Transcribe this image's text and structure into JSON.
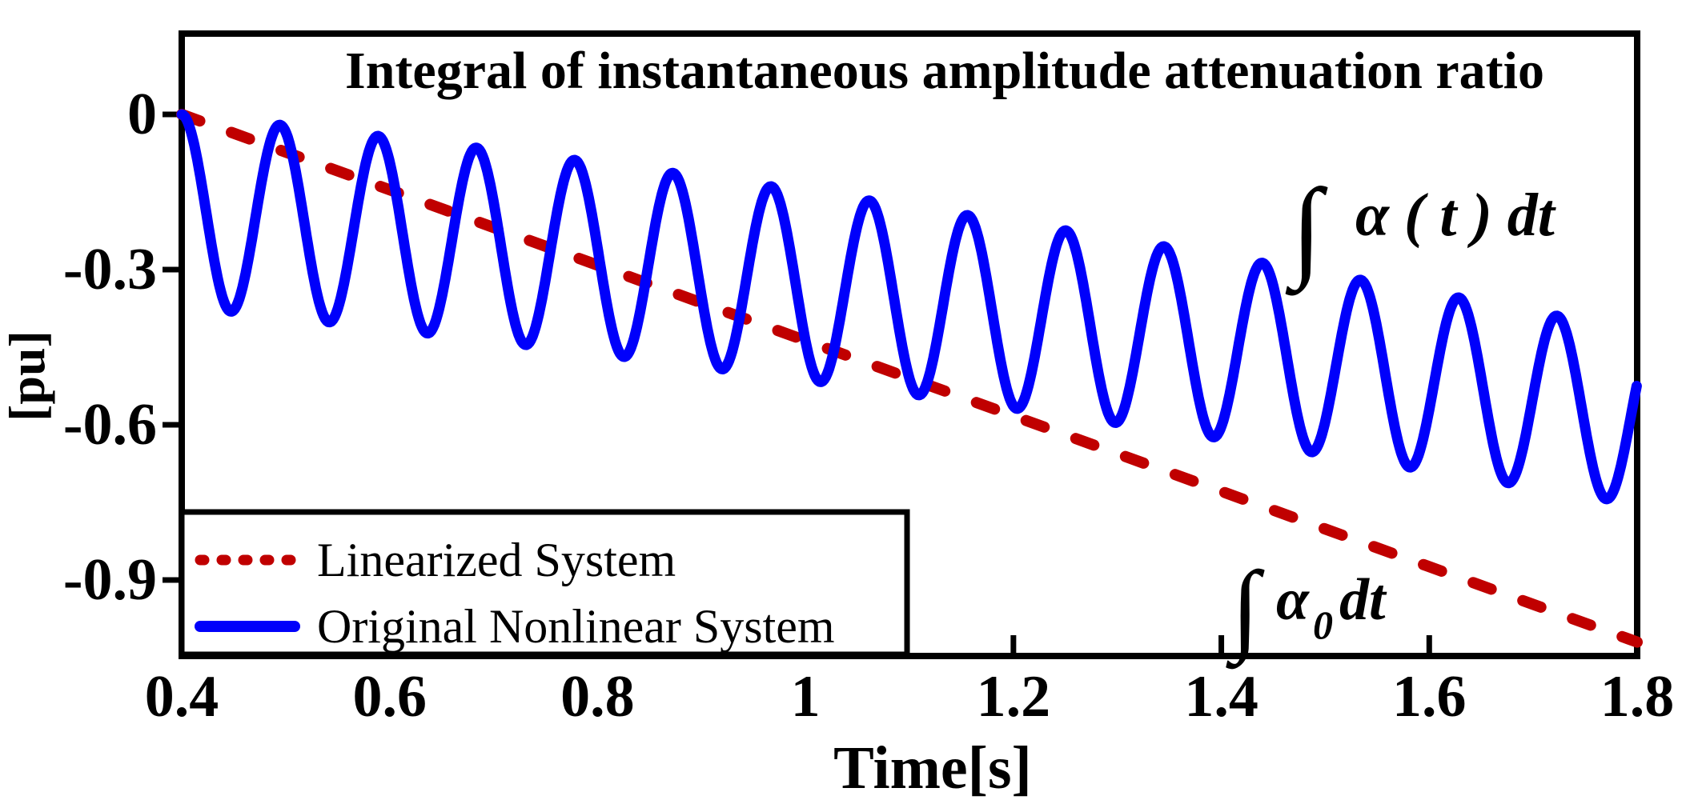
{
  "chart_data": {
    "type": "line",
    "title": "Integral of instantaneous amplitude attenuation ratio",
    "xlabel": "Time[s]",
    "ylabel": "[pu]",
    "xlim": [
      0.4,
      1.8
    ],
    "ylim": [
      -1.05,
      0.16
    ],
    "grid": false,
    "background": "#ffffff",
    "axis_color": "#000000",
    "x_ticks": {
      "values": [
        0.4,
        0.6,
        0.8,
        1,
        1.2,
        1.4,
        1.6,
        1.8
      ],
      "labels": [
        "0.4",
        "0.6",
        "0.8",
        "1",
        "1.2",
        "1.4",
        "1.6",
        "1.8"
      ]
    },
    "y_ticks": {
      "values": [
        0,
        -0.3,
        -0.6,
        -0.9
      ],
      "labels": [
        "0",
        "-0.3",
        "-0.6",
        "-0.9"
      ]
    },
    "legend_position": "bottom-left",
    "series": [
      {
        "name": "Linearized System",
        "style": "dashed",
        "color": "#C00000",
        "points": [
          [
            0.4,
            0.0
          ],
          [
            1.8,
            -1.02
          ]
        ]
      },
      {
        "name": "Original Nonlinear System",
        "style": "solid",
        "color": "#0000FB",
        "oscillation": {
          "waveform": "cosine",
          "period_s": 0.0945,
          "t_start": 0.4,
          "t_end": 1.8,
          "mean_poly_in_t_minus_0p4": [
            -0.1855,
            -0.2097,
            -0.0547
          ],
          "amplitude_poly_in_t_minus_0p4": [
            0.1855,
            0.0007,
            -0.0098
          ]
        },
        "peaks": [
          [
            0.4,
            0.0
          ],
          [
            0.495,
            -0.02
          ],
          [
            0.589,
            -0.042
          ],
          [
            0.684,
            -0.064
          ],
          [
            0.778,
            -0.088
          ],
          [
            0.873,
            -0.113
          ],
          [
            0.967,
            -0.139
          ],
          [
            1.062,
            -0.166
          ],
          [
            1.156,
            -0.195
          ],
          [
            1.251,
            -0.224
          ],
          [
            1.345,
            -0.255
          ],
          [
            1.44,
            -0.287
          ],
          [
            1.534,
            -0.32
          ],
          [
            1.629,
            -0.354
          ],
          [
            1.723,
            -0.389
          ]
        ],
        "troughs": [
          [
            0.447,
            -0.381
          ],
          [
            0.542,
            -0.402
          ],
          [
            0.636,
            -0.423
          ],
          [
            0.731,
            -0.446
          ],
          [
            0.825,
            -0.469
          ],
          [
            0.92,
            -0.493
          ],
          [
            1.014,
            -0.517
          ],
          [
            1.109,
            -0.543
          ],
          [
            1.203,
            -0.57
          ],
          [
            1.298,
            -0.597
          ],
          [
            1.392,
            -0.625
          ],
          [
            1.487,
            -0.654
          ],
          [
            1.581,
            -0.684
          ],
          [
            1.676,
            -0.715
          ],
          [
            1.77,
            -0.746
          ]
        ]
      }
    ],
    "annotations": [
      {
        "label": "integral-of-alpha-t-dt",
        "series": "Original Nonlinear System",
        "color": "#0000FB",
        "anchor": {
          "t": 1.49,
          "v": -0.29
        },
        "parts": {
          "integral": "∫",
          "body": "α ( t ) dt"
        }
      },
      {
        "label": "integral-of-alpha0-dt",
        "series": "Linearized System",
        "color": "#8B0000",
        "anchor": {
          "t": 1.42,
          "v": -0.95
        },
        "parts": {
          "integral": "∫",
          "alpha": "α",
          "subscript": "0",
          "rest": "dt"
        }
      }
    ]
  }
}
